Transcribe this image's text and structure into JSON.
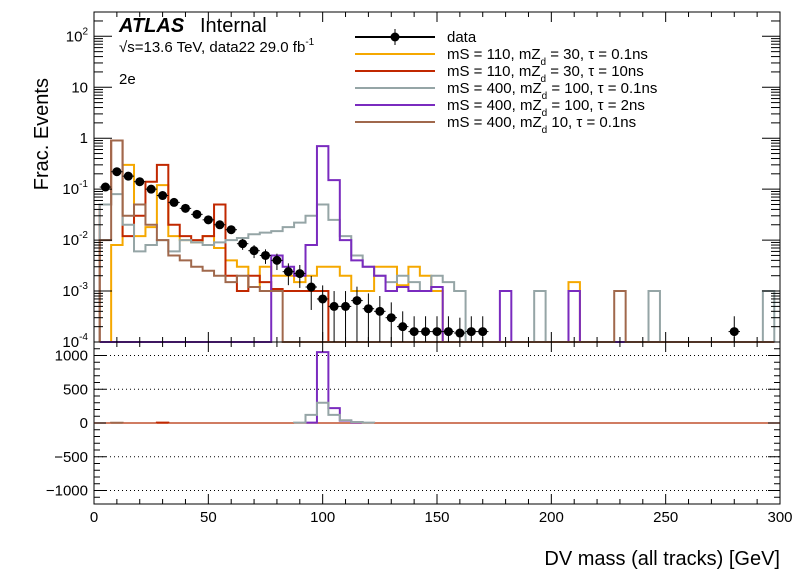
{
  "chart_data": [
    {
      "type": "step-histogram",
      "panel": "main",
      "ylabel": "Frac. Events",
      "yscale": "log",
      "ylim": [
        0.0001,
        300
      ],
      "xlim": [
        0,
        300
      ],
      "ytick_labels": [
        "10^{-4}",
        "10^{-3}",
        "10^{-2}",
        "10^{-1}",
        "1",
        "10",
        "10^{2}"
      ],
      "experiment": "ATLAS",
      "status": "Internal",
      "energy_text": "√s=13.6 TeV, data22 29.0 fb",
      "lumi_exp": "-1",
      "channel": "2e",
      "legend_position": "top-right",
      "series": [
        {
          "name": "data",
          "color": "#000000",
          "style": "points",
          "x": [
            5,
            10,
            15,
            20,
            25,
            30,
            35,
            40,
            45,
            50,
            55,
            60,
            65,
            70,
            75,
            80,
            85,
            90,
            95,
            100,
            105,
            110,
            115,
            120,
            125,
            130,
            135,
            140,
            145,
            150,
            155,
            160,
            165,
            170,
            280
          ],
          "y": [
            0.11,
            0.22,
            0.18,
            0.14,
            0.1,
            0.075,
            0.055,
            0.042,
            0.032,
            0.025,
            0.02,
            0.016,
            0.0085,
            0.0062,
            0.005,
            0.004,
            0.0024,
            0.0022,
            0.0012,
            0.0007,
            0.0005,
            0.0005,
            0.00065,
            0.00045,
            0.0004,
            0.0003,
            0.0002,
            0.00016,
            0.00016,
            0.00016,
            0.00016,
            0.00015,
            0.00016,
            0.00016,
            0.00016
          ]
        },
        {
          "name": "mS = 110, mZ_d = 30, τ = 0.1ns",
          "color": "#f5a800",
          "style": "hist",
          "x": [
            5,
            10,
            15,
            20,
            25,
            30,
            35,
            40,
            45,
            50,
            55,
            60,
            65,
            70,
            75,
            80,
            85,
            90,
            95,
            100,
            105,
            110,
            115,
            120,
            125,
            130,
            135,
            140,
            145,
            150,
            155,
            160,
            165,
            170,
            175,
            180,
            185,
            190,
            195,
            200,
            205,
            210,
            215,
            220,
            225,
            230,
            235,
            240,
            245,
            250,
            255,
            260,
            265,
            270,
            275,
            280,
            285,
            290,
            295
          ],
          "y": [
            0,
            0.008,
            0.3,
            0.012,
            0.018,
            0.12,
            0.012,
            0.01,
            0.009,
            0.012,
            0.007,
            0.004,
            0.003,
            0.0012,
            0.003,
            0.002,
            0.002,
            0.0015,
            0.002,
            0.003,
            0.003,
            0.002,
            0.001,
            0.001,
            0.003,
            0.003,
            0.0013,
            0.003,
            0.002,
            0.001,
            0,
            0,
            0,
            0,
            0,
            0,
            0,
            0,
            0,
            0,
            0,
            0.0015,
            0,
            0,
            0,
            0,
            0,
            0,
            0,
            0,
            0,
            0,
            0,
            0,
            0,
            0,
            0,
            0,
            0
          ]
        },
        {
          "name": "mS = 110, mZ_d = 30, τ = 10ns",
          "color": "#c12800",
          "style": "hist",
          "x": [
            5,
            10,
            15,
            20,
            25,
            30,
            35,
            40,
            45,
            50,
            55,
            60,
            65,
            70,
            75,
            80,
            85,
            90,
            95,
            100,
            105,
            110,
            115,
            120,
            125,
            130,
            135,
            140,
            145,
            150
          ],
          "y": [
            0.05,
            0.9,
            0.012,
            0.03,
            0.14,
            0.3,
            0.02,
            0.012,
            0.01,
            0.012,
            0.05,
            0.002,
            0.001,
            0.002,
            0.0015,
            0.0011,
            0.001,
            0.001,
            0.001,
            0.001,
            0,
            0,
            0,
            0,
            0,
            0,
            0,
            0,
            0,
            0
          ]
        },
        {
          "name": "mS = 400, mZ_d = 100, τ = 0.1ns",
          "color": "#95a5a6",
          "style": "hist",
          "x": [
            5,
            10,
            15,
            20,
            25,
            30,
            35,
            40,
            45,
            50,
            55,
            60,
            65,
            70,
            75,
            80,
            85,
            90,
            95,
            100,
            105,
            110,
            115,
            120,
            125,
            130,
            135,
            140,
            145,
            150,
            155,
            160,
            165,
            170,
            175,
            180,
            185,
            190,
            195,
            200,
            205,
            210,
            215,
            220,
            225,
            230,
            235,
            240,
            245,
            250,
            255,
            260,
            265,
            270,
            275,
            280,
            285,
            290,
            295
          ],
          "y": [
            0.05,
            0.08,
            0.02,
            0.006,
            0.008,
            0.01,
            0.006,
            0.01,
            0.009,
            0.008,
            0.009,
            0.01,
            0.011,
            0.013,
            0.014,
            0.015,
            0.018,
            0.022,
            0.03,
            0.05,
            0.025,
            0.012,
            0.005,
            0.003,
            0.002,
            0.0015,
            0.002,
            0.0015,
            0.001,
            0.002,
            0.0015,
            0.001,
            0,
            0,
            0,
            0,
            0,
            0,
            0.001,
            0,
            0,
            0,
            0,
            0,
            0,
            0,
            0,
            0,
            0.001,
            0,
            0,
            0,
            0,
            0,
            0,
            0,
            0,
            0,
            0.001
          ]
        },
        {
          "name": "mS = 400, mZ_d = 100, τ = 2ns",
          "color": "#7a2bbf",
          "style": "hist",
          "x": [
            5,
            10,
            15,
            20,
            25,
            30,
            35,
            40,
            45,
            50,
            55,
            60,
            65,
            70,
            75,
            80,
            85,
            90,
            95,
            100,
            105,
            110,
            115,
            120,
            125,
            130,
            135,
            140,
            145,
            150,
            155,
            160,
            165,
            170,
            175,
            180,
            185,
            190,
            195,
            200,
            205,
            210,
            215,
            220,
            225,
            230,
            235,
            240,
            245,
            250,
            255,
            260,
            265,
            270,
            275,
            280,
            285,
            290,
            295
          ],
          "y": [
            0,
            0,
            0,
            0,
            0,
            0,
            0,
            0,
            0,
            0,
            0,
            0,
            0,
            0,
            0,
            0.005,
            0.003,
            0.002,
            0.008,
            0.7,
            0.15,
            0.01,
            0.004,
            0.003,
            0.002,
            0.001,
            0.0012,
            0.001,
            0.001,
            0.0012,
            0,
            0,
            0,
            0,
            0,
            0.001,
            0,
            0,
            0,
            0,
            0,
            0.001,
            0,
            0,
            0,
            0,
            0,
            0,
            0,
            0,
            0,
            0,
            0,
            0,
            0,
            0,
            0,
            0,
            0
          ]
        },
        {
          "name": "mS = 400, mZ_d 10, τ = 0.1ns",
          "color": "#a0684c",
          "style": "hist",
          "x": [
            5,
            10,
            15,
            20,
            25,
            30,
            35,
            40,
            45,
            50,
            55,
            60,
            65,
            70,
            75,
            80,
            85,
            90,
            95,
            100,
            105,
            110,
            115,
            120,
            125,
            130,
            135,
            140,
            145,
            150,
            155,
            160,
            165,
            170,
            175,
            180,
            185,
            190,
            195,
            200,
            205,
            210,
            215,
            220,
            225,
            230,
            235,
            240,
            245,
            250,
            255,
            260,
            265,
            270,
            275,
            280,
            285,
            290,
            295
          ],
          "y": [
            0.01,
            0.9,
            0.03,
            0.05,
            0.02,
            0.01,
            0.005,
            0.004,
            0.003,
            0.0025,
            0.002,
            0.0015,
            0.002,
            0.0012,
            0.001,
            0.001,
            0,
            0,
            0,
            0,
            0,
            0,
            0,
            0,
            0,
            0,
            0,
            0,
            0,
            0,
            0,
            0,
            0,
            0,
            0,
            0,
            0,
            0,
            0,
            0,
            0,
            0,
            0,
            0,
            0,
            0.001,
            0,
            0,
            0,
            0,
            0,
            0,
            0,
            0,
            0,
            0,
            0,
            0,
            0
          ]
        }
      ]
    },
    {
      "type": "step-histogram",
      "panel": "ratio",
      "xlabel": "DV mass (all tracks) [GeV]",
      "ylim": [
        -1200,
        1200
      ],
      "yticks": [
        -1000,
        -500,
        0,
        500,
        1000
      ],
      "ytick_labels": [
        "−1000",
        "−500",
        "0",
        "500",
        "1000"
      ],
      "xticks": [
        0,
        50,
        100,
        150,
        200,
        250,
        300
      ],
      "xtick_labels": [
        "0",
        "50",
        "100",
        "150",
        "200",
        "250",
        "300"
      ],
      "grid": "horizontal dotted",
      "series": [
        {
          "name": "mS = 400, mZ_d = 100, τ = 2ns",
          "color": "#7a2bbf",
          "x": [
            95,
            100,
            105,
            110,
            115
          ],
          "y": [
            5,
            1050,
            220,
            35,
            8
          ]
        },
        {
          "name": "mS = 400, mZ_d = 100, τ = 0.1ns",
          "color": "#95a5a6",
          "x": [
            90,
            95,
            100,
            105,
            110,
            115,
            120
          ],
          "y": [
            5,
            120,
            300,
            120,
            40,
            15,
            5
          ]
        },
        {
          "name": "mS = 110, mZ_d = 30, τ = 10ns",
          "color": "#c12800",
          "x": [
            30
          ],
          "y": [
            5
          ]
        },
        {
          "name": "mS = 400, mZ_d 10, τ = 0.1ns",
          "color": "#a0684c",
          "x": [
            10
          ],
          "y": [
            4
          ]
        }
      ]
    }
  ]
}
